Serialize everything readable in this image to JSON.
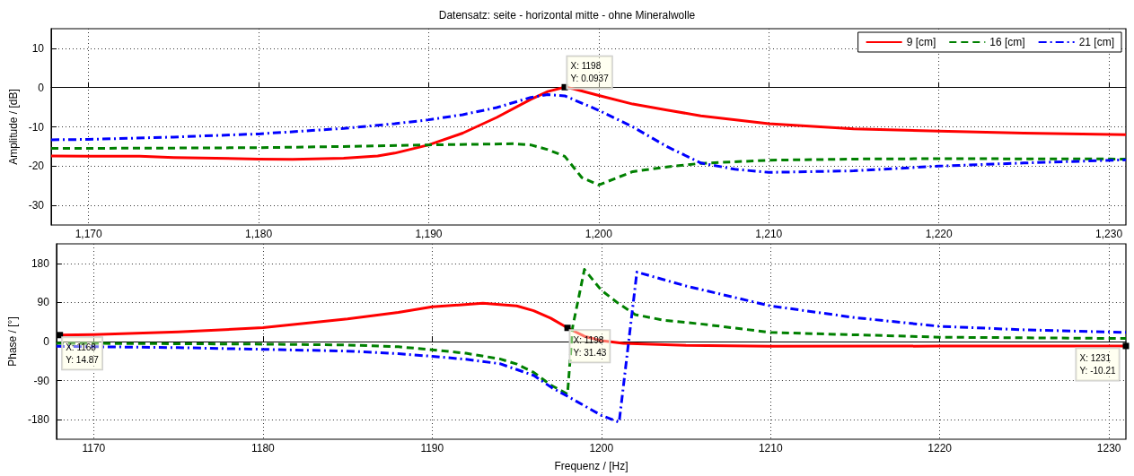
{
  "chart_data": [
    {
      "type": "line",
      "title": "Datensatz: seite - horizontal mitte - ohne Mineralwolle",
      "ylabel": "Amplitude / [dB]",
      "xlim": [
        1167.8,
        1231
      ],
      "xticks": [
        {
          "value": 1170,
          "label": "1,170"
        },
        {
          "value": 1180,
          "label": "1,180"
        },
        {
          "value": 1190,
          "label": "1,190"
        },
        {
          "value": 1200,
          "label": "1,200"
        },
        {
          "value": 1210,
          "label": "1,210"
        },
        {
          "value": 1220,
          "label": "1,220"
        },
        {
          "value": 1230,
          "label": "1,230"
        }
      ],
      "ylim": [
        -35,
        15
      ],
      "yticks": [
        -30,
        -20,
        -10,
        0,
        10
      ],
      "grid": true,
      "legend": "top right",
      "marker": "none",
      "series": [
        {
          "name": "9 [cm]",
          "color": "#ff0000",
          "line_style": "solid",
          "x": [
            1167.8,
            1170,
            1173,
            1175,
            1180,
            1182,
            1185,
            1187,
            1188,
            1190,
            1192,
            1194,
            1196,
            1197,
            1198,
            1198.5,
            1200,
            1202,
            1204,
            1206,
            1210,
            1215,
            1220,
            1225,
            1231
          ],
          "values": [
            -17.4,
            -17.5,
            -17.5,
            -17.8,
            -18.2,
            -18.3,
            -18.0,
            -17.4,
            -16.7,
            -14.6,
            -11.6,
            -7.6,
            -3.0,
            -1.0,
            0.0937,
            -0.3,
            -2.0,
            -4.2,
            -5.7,
            -7.2,
            -9.2,
            -10.5,
            -11.1,
            -11.6,
            -12.0
          ]
        },
        {
          "name": "16 [cm]",
          "color": "#008000",
          "line_style": "dashed",
          "x": [
            1167.8,
            1175,
            1180,
            1185,
            1190,
            1195,
            1196,
            1197,
            1198,
            1199,
            1200,
            1202,
            1204,
            1206,
            1210,
            1215,
            1220,
            1231
          ],
          "values": [
            -15.5,
            -15.4,
            -15.3,
            -15.0,
            -14.6,
            -14.3,
            -14.6,
            -15.8,
            -17.5,
            -22.9,
            -24.8,
            -21.4,
            -20.2,
            -19.3,
            -18.5,
            -18.2,
            -18.1,
            -18.2
          ]
        },
        {
          "name": "21 [cm]",
          "color": "#0000ff",
          "line_style": "dashdot",
          "x": [
            1167.8,
            1170,
            1175,
            1180,
            1185,
            1188,
            1190,
            1192,
            1194,
            1196,
            1197,
            1198,
            1200,
            1202,
            1204,
            1206,
            1208,
            1210,
            1215,
            1220,
            1225,
            1231
          ],
          "values": [
            -13.3,
            -13.2,
            -12.6,
            -11.8,
            -10.4,
            -9.2,
            -8.2,
            -6.9,
            -5.1,
            -2.5,
            -1.8,
            -2.1,
            -5.8,
            -10.0,
            -15.0,
            -19.2,
            -20.8,
            -21.6,
            -21.2,
            -20.0,
            -19.2,
            -18.4
          ]
        }
      ],
      "annotations": [
        {
          "text": "X: 1198\nY: 0.0937",
          "x": 1198,
          "y": 0.0937
        }
      ]
    },
    {
      "type": "line",
      "xlabel": "Frequenz / [Hz]",
      "ylabel": "Phase / [°]",
      "xlim": [
        1167.8,
        1231
      ],
      "xticks": [
        1170,
        1180,
        1190,
        1200,
        1210,
        1220,
        1230
      ],
      "ylim": [
        -225,
        225
      ],
      "yticks": [
        -180,
        -90,
        0,
        90,
        180
      ],
      "grid": true,
      "legend": false,
      "marker": "none",
      "series": [
        {
          "color": "#ff0000",
          "line_style": "solid",
          "x": [
            1168,
            1170,
            1175,
            1180,
            1185,
            1188,
            1190,
            1193,
            1195,
            1196,
            1197,
            1198,
            1199,
            1200,
            1201.3,
            1205,
            1210,
            1220,
            1231
          ],
          "values": [
            14.87,
            16,
            22,
            32,
            52,
            67,
            80,
            88,
            82,
            71,
            54,
            31.43,
            12,
            2,
            -4,
            -9,
            -11,
            -10.5,
            -10.21
          ]
        },
        {
          "color": "#008000",
          "line_style": "dashed",
          "x": [
            1167.8,
            1175,
            1180,
            1185,
            1188,
            1190,
            1192,
            1194,
            1195,
            1196,
            1197,
            1198,
            1198.3,
            1199,
            1200,
            1201,
            1202,
            1203.7,
            1206,
            1210,
            1220,
            1231
          ],
          "values": [
            -4,
            -5,
            -6,
            -8,
            -12,
            -19,
            -27,
            -40,
            -52,
            -71,
            -100,
            -121,
            33,
            166,
            118,
            88,
            62,
            49,
            40,
            21,
            10,
            7
          ]
        },
        {
          "color": "#0000ff",
          "line_style": "dashdot",
          "x": [
            1167.8,
            1175,
            1180,
            1185,
            1188,
            1190,
            1192,
            1194,
            1196,
            1197.1,
            1198,
            1200,
            1201.05,
            1202.1,
            1205,
            1210,
            1215,
            1220,
            1225,
            1231
          ],
          "values": [
            -11,
            -14,
            -18,
            -22,
            -28,
            -34,
            -41,
            -51,
            -78,
            -107,
            -126,
            -170,
            -186,
            160,
            128,
            82,
            55,
            35,
            27,
            21
          ]
        }
      ],
      "annotations": [
        {
          "text": "X: 1168\nY: 14.87",
          "x": 1168,
          "y": 14.87
        },
        {
          "text": "X: 1198\nY: 31.43",
          "x": 1198,
          "y": 31.43
        },
        {
          "text": "X: 1231\nY: -10.21",
          "x": 1231,
          "y": -10.21
        }
      ]
    }
  ]
}
